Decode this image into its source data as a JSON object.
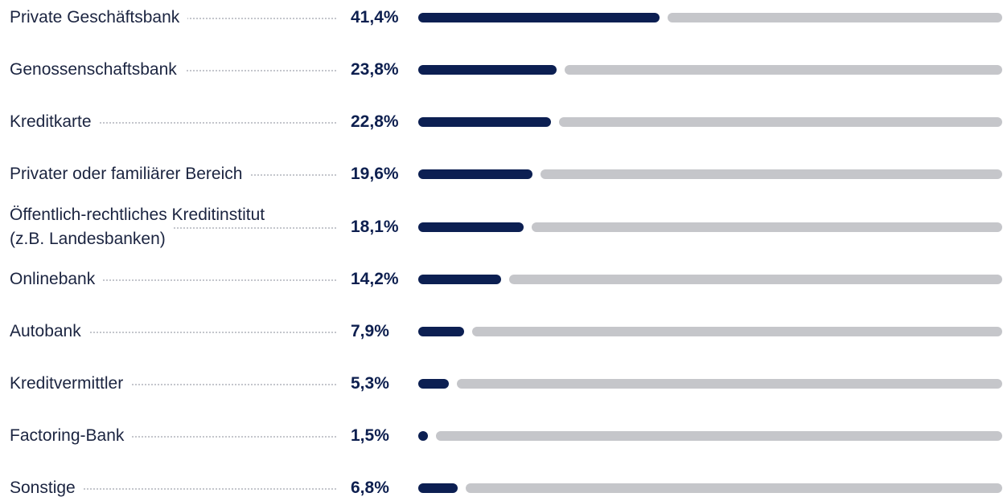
{
  "chart_data": {
    "type": "bar",
    "orientation": "horizontal",
    "title": "",
    "xlabel": "",
    "ylabel": "",
    "xlim": [
      0,
      100
    ],
    "grid": false,
    "legend": "none",
    "colors": {
      "bar": "#0c1f52",
      "track": "#c5c6ca",
      "label": "#1b2440",
      "value": "#0d1f4f",
      "leader": "#c4c6cc"
    },
    "categories": [
      "Private Geschäftsbank",
      "Genossenschaftsbank",
      "Kreditkarte",
      "Privater oder familiärer Bereich",
      "Öffentlich-rechtliches Kreditinstitut (z.B. Landesbanken)",
      "Onlinebank",
      "Autobank",
      "Kreditvermittler",
      "Factoring-Bank",
      "Sonstige"
    ],
    "label_lines": [
      [
        "Private Geschäftsbank"
      ],
      [
        "Genossenschaftsbank"
      ],
      [
        "Kreditkarte"
      ],
      [
        "Privater oder familiärer Bereich"
      ],
      [
        "Öffentlich-rechtliches Kreditinstitut",
        "(z.B. Landesbanken)"
      ],
      [
        "Onlinebank"
      ],
      [
        "Autobank"
      ],
      [
        "Kreditvermittler"
      ],
      [
        "Factoring-Bank"
      ],
      [
        "Sonstige"
      ]
    ],
    "values": [
      41.4,
      23.8,
      22.8,
      19.6,
      18.1,
      14.2,
      7.9,
      5.3,
      1.5,
      6.8
    ],
    "value_labels": [
      "41,4%",
      "23,8%",
      "22,8%",
      "19,6%",
      "18,1%",
      "14,2%",
      "7,9%",
      "5,3%",
      "1,5%",
      "6,8%"
    ]
  }
}
